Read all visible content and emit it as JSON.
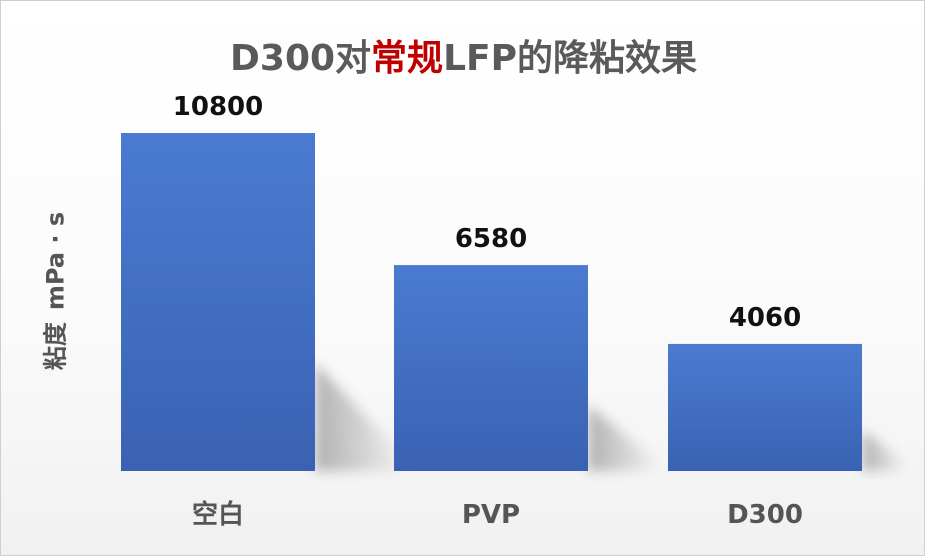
{
  "title": {
    "part1": "D300对",
    "part2": "常规",
    "part3": "LFP的降粘效果"
  },
  "colors": {
    "bar": "#4472c4",
    "title_highlight": "#c00000",
    "text": "#555555"
  },
  "chart_data": {
    "type": "bar",
    "title": "D300对常规LFP的降粘效果",
    "ylabel": "粘度 mPa · s",
    "xlabel": "",
    "categories": [
      "空白",
      "PVP",
      "D300"
    ],
    "values": [
      10800,
      6580,
      4060
    ],
    "data_labels": [
      "10800",
      "6580",
      "4060"
    ],
    "ylim": [
      0,
      12000
    ],
    "grid": false,
    "legend": "none"
  },
  "ylabel_parts": [
    "粘度",
    "mPa · s"
  ]
}
